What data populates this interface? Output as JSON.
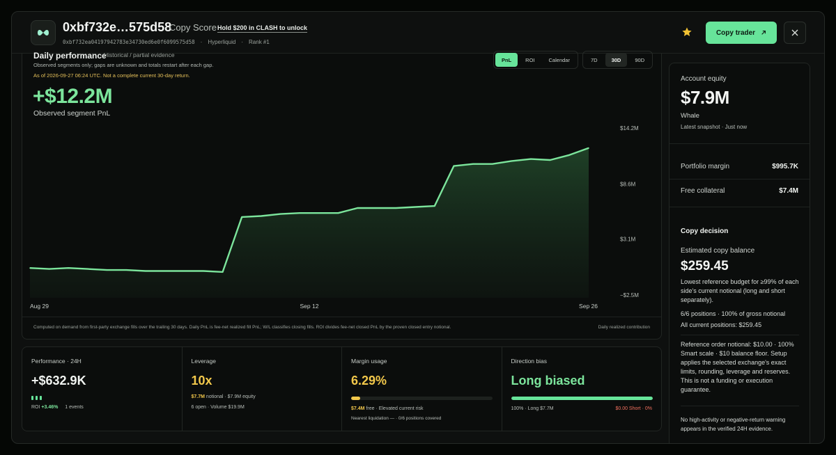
{
  "header": {
    "address": "0xbf732e…575d58",
    "copy_score_label": "Copy Score",
    "hold_text": "Hold $200 in CLASH to unlock",
    "full_address": "0xbf732ea04197942783e34730ed6e0f6099575d58",
    "exchange": "Hyperliquid",
    "rank": "Rank #1",
    "separator": "·",
    "copy_button": "Copy trader",
    "star_color": "#f2c233",
    "accent": "#67e49a"
  },
  "performance": {
    "title": "Daily performance",
    "subtitle": "Historical / partial evidence",
    "note": "Observed segments only; gaps are unknown and totals restart after each gap.",
    "as_of": "As of 2026-09-27 06:24 UTC. Not a complete current 30-day return.",
    "big_value": "+$12.2M",
    "big_label": "Observed segment PnL",
    "metric_tabs": [
      "PnL",
      "ROI",
      "Calendar"
    ],
    "active_metric": "PnL",
    "range_tabs": [
      "7D",
      "30D",
      "90D"
    ],
    "active_range": "30D",
    "footnote": "Computed on demand from first-party exchange fills over the trailing 30 days. Daily PnL is fee-net realized fill PnL; W/L classifies closing fills. ROI divides fee-net closed PnL by the proven closed entry notional.",
    "footnote_right": "Daily realized contribution"
  },
  "chart_data": {
    "type": "area",
    "x_tick_labels": [
      "Aug 29",
      "Sep 12",
      "Sep 26"
    ],
    "y_tick_labels": [
      "$14.2M",
      "$8.6M",
      "$3.1M",
      "−$2.5M"
    ],
    "y_ticks": [
      14.2,
      8.6,
      3.1,
      -2.5
    ],
    "ylim": [
      -2.5,
      14.2
    ],
    "x": [
      "Aug 29",
      "Aug 30",
      "Aug 31",
      "Sep 1",
      "Sep 2",
      "Sep 3",
      "Sep 4",
      "Sep 5",
      "Sep 6",
      "Sep 7",
      "Sep 8",
      "Sep 9",
      "Sep 10",
      "Sep 11",
      "Sep 12",
      "Sep 13",
      "Sep 14",
      "Sep 15",
      "Sep 16",
      "Sep 17",
      "Sep 18",
      "Sep 19",
      "Sep 20",
      "Sep 21",
      "Sep 22",
      "Sep 23",
      "Sep 24",
      "Sep 25",
      "Sep 26",
      "Sep 27"
    ],
    "series": [
      {
        "values": [
          0.2,
          0.1,
          0.2,
          0.1,
          0.0,
          0.0,
          -0.1,
          -0.1,
          -0.1,
          -0.1,
          -0.2,
          5.3,
          5.4,
          5.6,
          5.7,
          5.7,
          5.7,
          6.2,
          6.2,
          6.2,
          6.3,
          6.4,
          10.4,
          10.6,
          10.6,
          10.9,
          11.1,
          11.0,
          11.5,
          12.2
        ]
      }
    ],
    "line_color": "#7ce59c",
    "grid": false
  },
  "metrics": [
    {
      "title": "Performance · 24H",
      "value": "+$632.9K",
      "value_color": "#f0f3f0",
      "roi_label": "ROI",
      "roi_value": "+3.46%",
      "events": "1 events"
    },
    {
      "title": "Leverage",
      "value": "10x",
      "value_color": "#f2c84b",
      "notional": "$7.7M",
      "notional_rest": "notional · $7.9M equity",
      "line2": "6 open · Volume $19.9M"
    },
    {
      "title": "Margin usage",
      "value": "6.29%",
      "value_color": "#f2c84b",
      "fill": 0.0629,
      "fill_color": "#f2c84b",
      "free": "$7.4M",
      "free_rest": "free · Elevated current risk",
      "line2": "Nearest liquidation — · 0/6 positions covered"
    },
    {
      "title": "Direction bias",
      "value": "Long biased",
      "value_color": "#7ce59c",
      "fill": 1.0,
      "fill_color": "#67e49a",
      "left_label": "100% · Long $7.7M",
      "right_label": "$0.00 Short · 0%",
      "right_color": "#f2715f"
    }
  ],
  "side": {
    "equity_label": "Account equity",
    "equity_value": "$7.9M",
    "tier": "Whale",
    "snapshot": "Latest snapshot · Just now",
    "portfolio_margin_label": "Portfolio margin",
    "portfolio_margin_value": "$995.7K",
    "free_collateral_label": "Free collateral",
    "free_collateral_value": "$7.4M",
    "copy_decision": "Copy decision",
    "est_balance_label": "Estimated copy balance",
    "est_balance_value": "$259.45",
    "budget_text": "Lowest reference budget for ≥99% of each side's current notional (long and short separately).",
    "positions_text": "6/6 positions · 100% of gross notional",
    "all_positions": "All current positions: $259.45",
    "reference_text": "Reference order notional: $10.00 · 100% Smart scale · $10 balance floor. Setup applies the selected exchange's exact limits, rounding, leverage and reserves. This is not a funding or execution guarantee.",
    "warning_text": "No high-activity or negative-return warning appears in the verified 24H evidence."
  }
}
